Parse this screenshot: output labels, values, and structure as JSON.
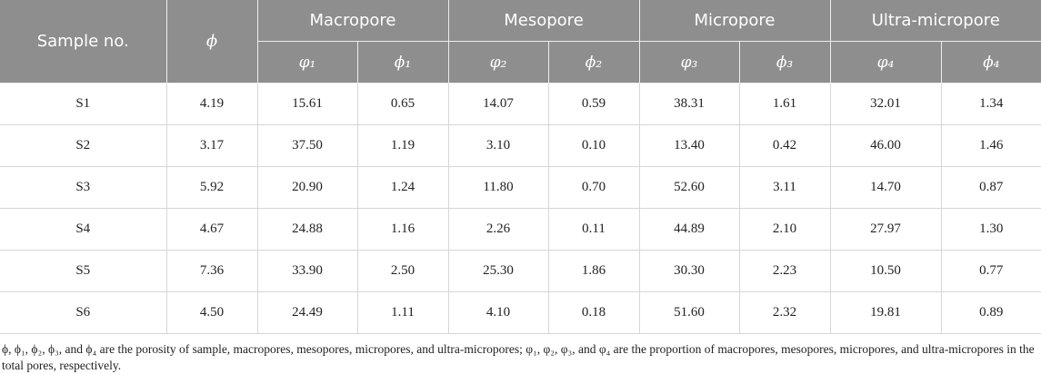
{
  "table": {
    "header": {
      "sample": "Sample no.",
      "porosity": "ϕ",
      "groups": [
        "Macropore",
        "Mesopore",
        "Micropore",
        "Ultra-micropore"
      ],
      "subheaders": [
        "φ₁",
        "ϕ₁",
        "φ₂",
        "ϕ₂",
        "φ₃",
        "ϕ₃",
        "φ₄",
        "ϕ₄"
      ]
    },
    "rows": [
      [
        "S1",
        "4.19",
        "15.61",
        "0.65",
        "14.07",
        "0.59",
        "38.31",
        "1.61",
        "32.01",
        "1.34"
      ],
      [
        "S2",
        "3.17",
        "37.50",
        "1.19",
        "3.10",
        "0.10",
        "13.40",
        "0.42",
        "46.00",
        "1.46"
      ],
      [
        "S3",
        "5.92",
        "20.90",
        "1.24",
        "11.80",
        "0.70",
        "52.60",
        "3.11",
        "14.70",
        "0.87"
      ],
      [
        "S4",
        "4.67",
        "24.88",
        "1.16",
        "2.26",
        "0.11",
        "44.89",
        "2.10",
        "27.97",
        "1.30"
      ],
      [
        "S5",
        "7.36",
        "33.90",
        "2.50",
        "25.30",
        "1.86",
        "30.30",
        "2.23",
        "10.50",
        "0.77"
      ],
      [
        "S6",
        "4.50",
        "24.49",
        "1.11",
        "4.10",
        "0.18",
        "51.60",
        "2.32",
        "19.81",
        "0.89"
      ]
    ],
    "footnote": "ϕ, ϕ₁, ϕ₂, ϕ₃, and ϕ₄ are the porosity of sample, macropores, mesopores, micropores, and ultra-micropores; φ₁, φ₂, φ₃, and φ₄ are the proportion of macropores, mesopores, micropores, and ultra-micropores in the total pores, respectively."
  }
}
